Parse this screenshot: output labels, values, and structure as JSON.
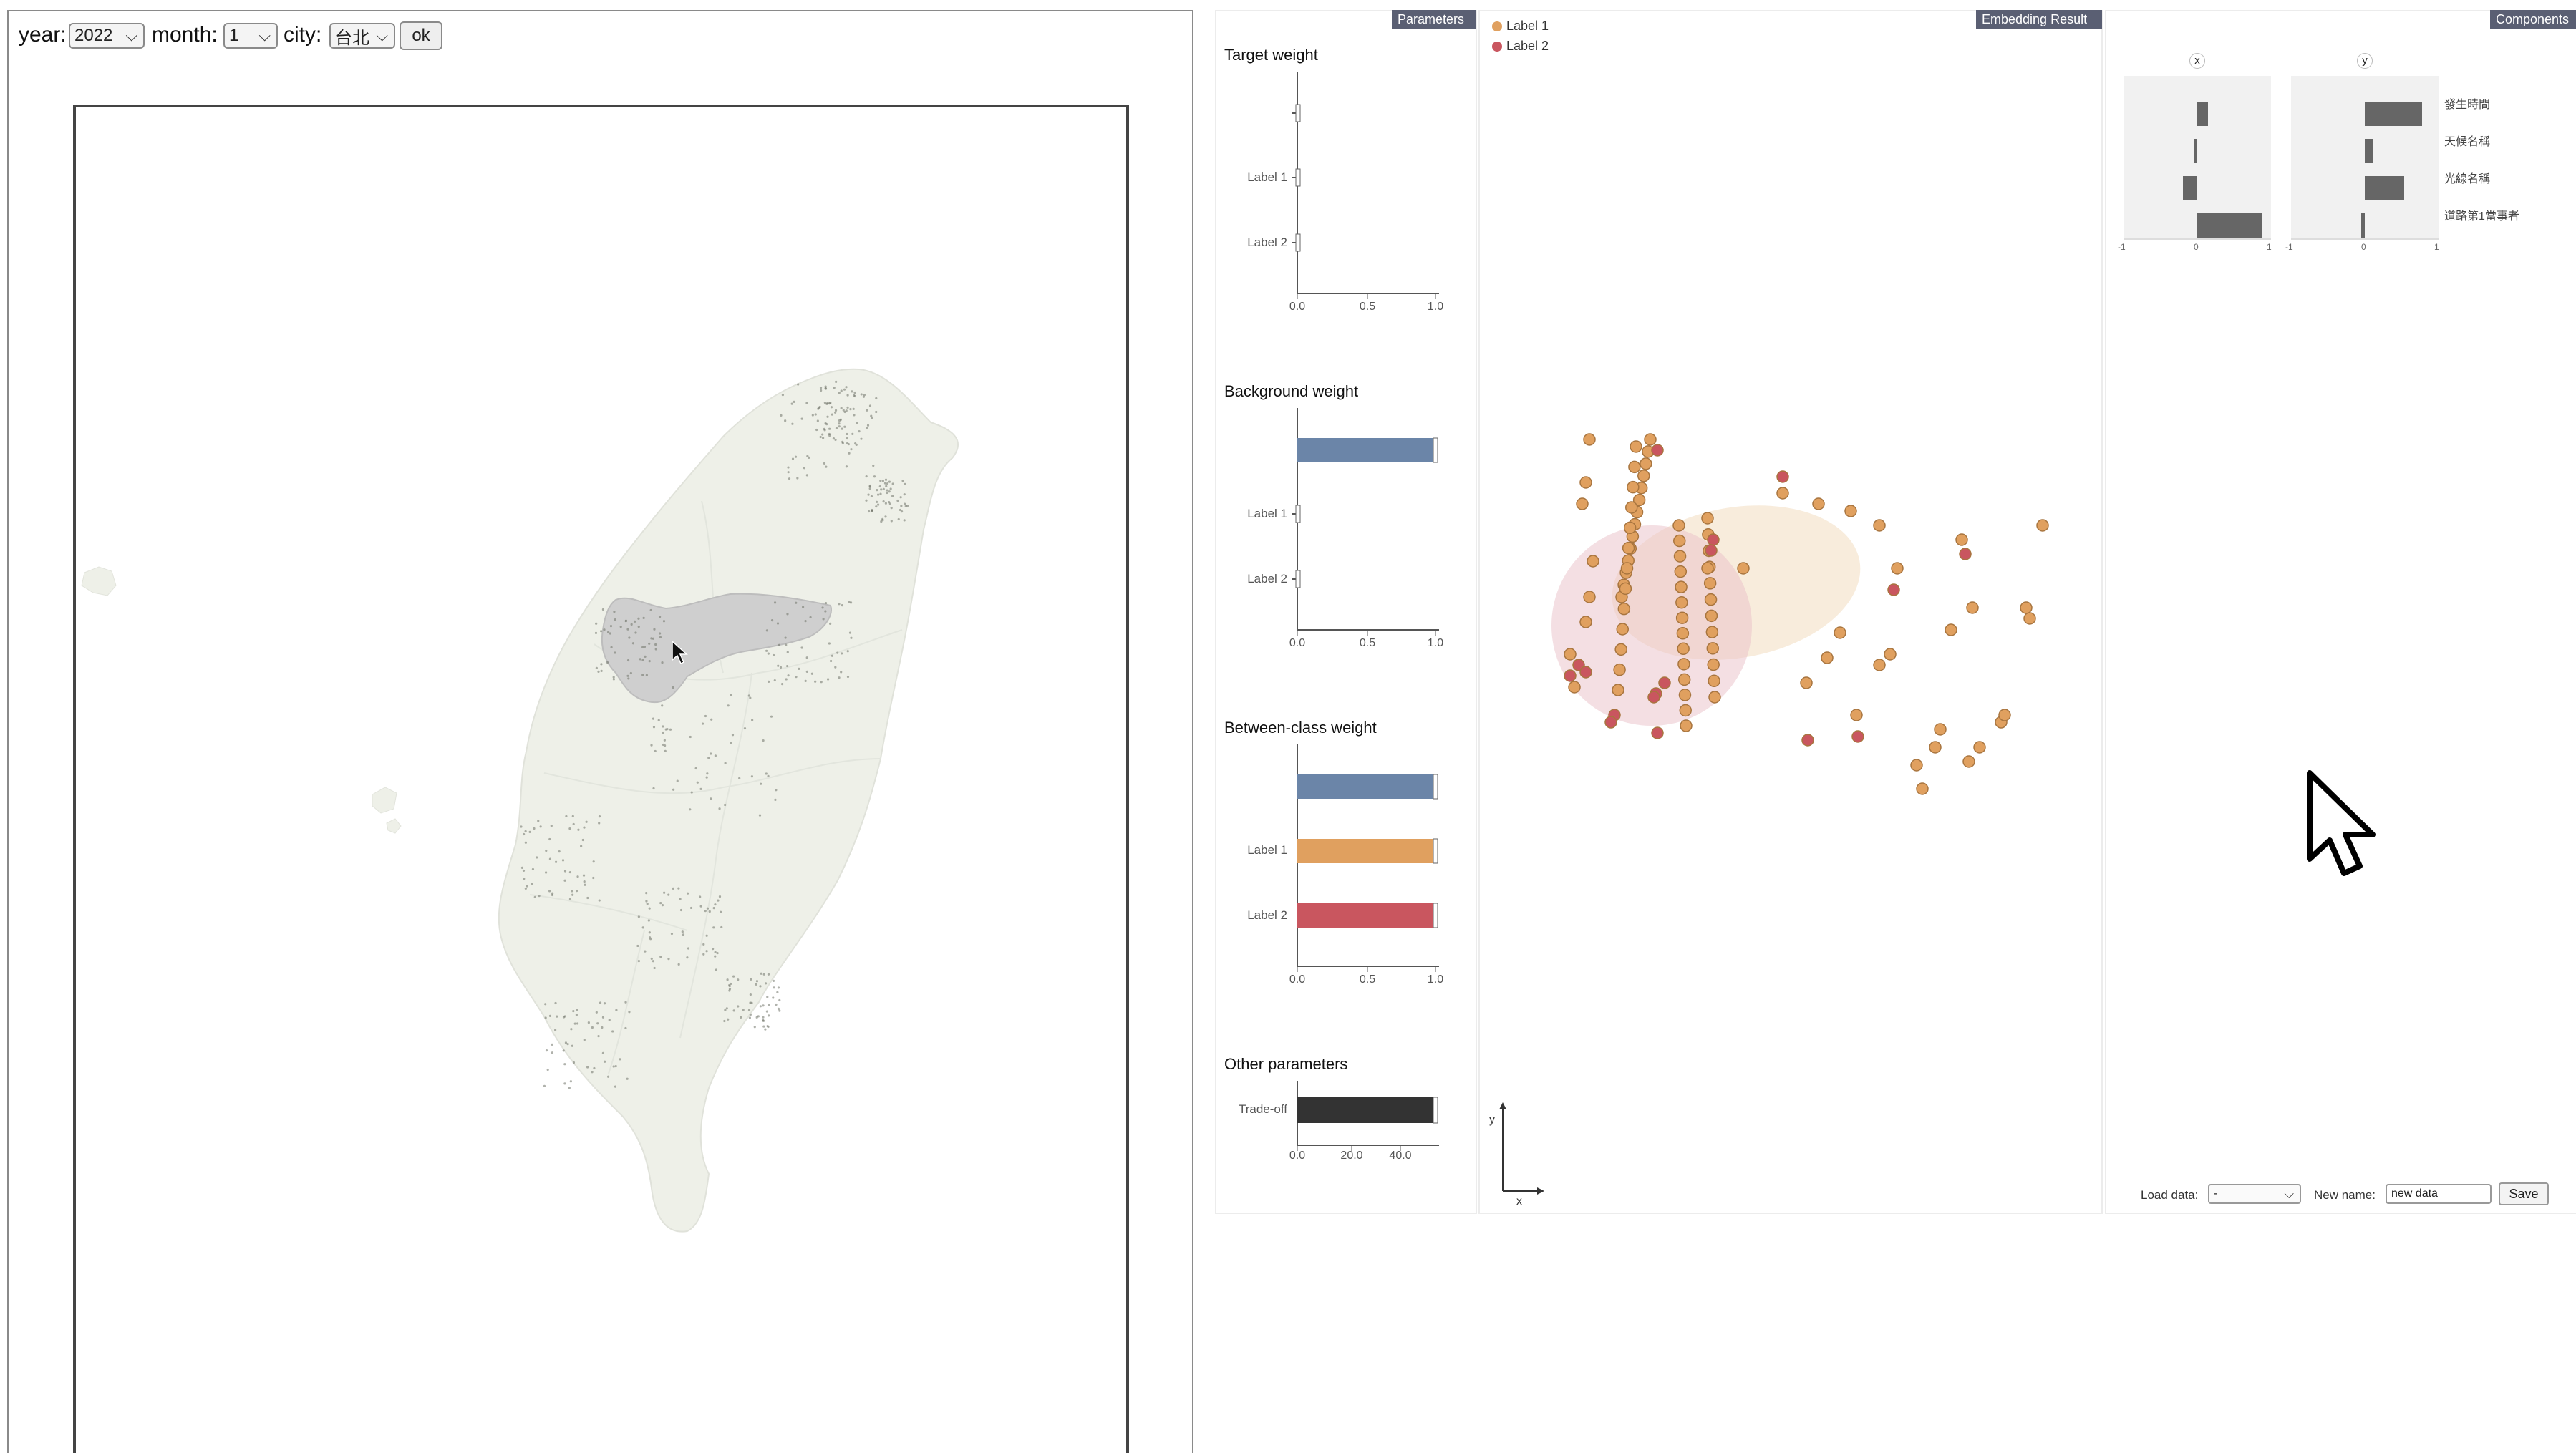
{
  "controls": {
    "year_label": "year:",
    "year_value": "2022",
    "month_label": "month:",
    "month_value": "1",
    "city_label": "city:",
    "city_value": "台北",
    "ok_label": "ok"
  },
  "parameters": {
    "tag": "Parameters",
    "sections": [
      {
        "title": "Target weight",
        "rows": [
          {
            "label": "",
            "value": 0.0
          },
          {
            "label": "Label 1",
            "value": 0.0
          },
          {
            "label": "Label 2",
            "value": 0.0
          }
        ],
        "ticks": [
          "0.0",
          "0.5",
          "1.0"
        ]
      },
      {
        "title": "Background weight",
        "rows": [
          {
            "label": "",
            "value": 1.0,
            "color": "#6b85a8"
          },
          {
            "label": "Label 1",
            "value": 0.0
          },
          {
            "label": "Label 2",
            "value": 0.0
          }
        ],
        "ticks": [
          "0.0",
          "0.5",
          "1.0"
        ]
      },
      {
        "title": "Between-class weight",
        "rows": [
          {
            "label": "",
            "value": 1.0,
            "color": "#6b85a8"
          },
          {
            "label": "Label 1",
            "value": 1.0,
            "color": "#e0a05f"
          },
          {
            "label": "Label 2",
            "value": 1.0,
            "color": "#c9565f"
          }
        ],
        "ticks": [
          "0.0",
          "0.5",
          "1.0"
        ]
      },
      {
        "title": "Other parameters",
        "rows": [
          {
            "label": "Trade-off",
            "value": 50,
            "color": "#333333"
          }
        ],
        "ticks": [
          "0.0",
          "20.0",
          "40.0"
        ]
      }
    ]
  },
  "embedding": {
    "tag": "Embedding Result",
    "legend": [
      {
        "label": "Label 1",
        "color": "#e0a05f"
      },
      {
        "label": "Label 2",
        "color": "#c9565f"
      }
    ],
    "axis_x": "x",
    "axis_y": "y"
  },
  "components": {
    "tag": "Components",
    "chart_x_title": "x",
    "chart_y_title": "y",
    "features": [
      "發生時間",
      "天候名稱",
      "光線名稱",
      "道路第1當事者"
    ],
    "x_values": [
      0.15,
      -0.05,
      -0.2,
      0.9
    ],
    "y_values": [
      0.8,
      0.12,
      0.55,
      -0.05
    ],
    "ticks": [
      "-1",
      "0",
      "1"
    ]
  },
  "footer": {
    "load_label": "Load data:",
    "load_value": "-",
    "name_label": "New name:",
    "name_value": "new data",
    "save_label": "Save"
  },
  "colors": {
    "panel_tag": "#5a5f73",
    "label1": "#e0a05f",
    "label2": "#c9565f",
    "blue": "#6b85a8",
    "map_land": "#eef0e8",
    "selected_county": "#cfcfcf"
  }
}
